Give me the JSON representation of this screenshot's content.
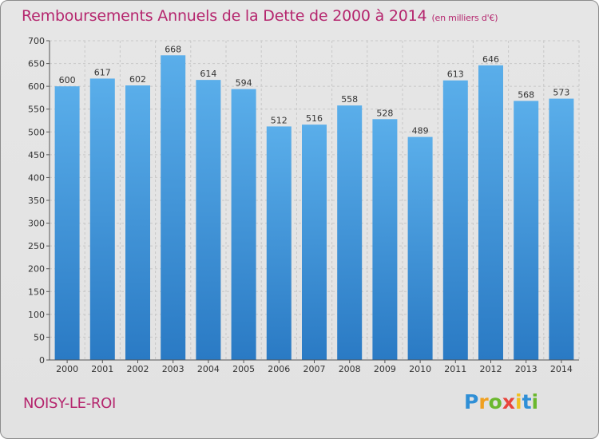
{
  "title": "Remboursements Annuels de la Dette de 2000 à 2014",
  "unit_note": "(en milliers d'€)",
  "city": "NOISY-LE-ROI",
  "logo": {
    "letters": [
      "P",
      "r",
      "o",
      "x",
      "i",
      "t",
      "i"
    ],
    "colors": [
      "#2f8fd6",
      "#f0a020",
      "#6bb82e",
      "#e8453c",
      "#f0c020",
      "#2f8fd6",
      "#6bb82e"
    ]
  },
  "colors": {
    "bar_top": "#5aaeea",
    "bar_bottom": "#2a7ac4",
    "title": "#b5266e",
    "grid": "#c8c8c8"
  },
  "chart_data": {
    "type": "bar",
    "title": "Remboursements Annuels de la Dette de 2000 à 2014",
    "categories": [
      "2000",
      "2001",
      "2002",
      "2003",
      "2004",
      "2005",
      "2006",
      "2007",
      "2008",
      "2009",
      "2010",
      "2011",
      "2012",
      "2013",
      "2014"
    ],
    "values": [
      600,
      617,
      602,
      668,
      614,
      594,
      512,
      516,
      558,
      528,
      489,
      613,
      646,
      568,
      573
    ],
    "ylim": [
      0,
      700
    ],
    "yticks": [
      0,
      50,
      100,
      150,
      200,
      250,
      300,
      350,
      400,
      450,
      500,
      550,
      600,
      650,
      700
    ],
    "grid": true
  }
}
